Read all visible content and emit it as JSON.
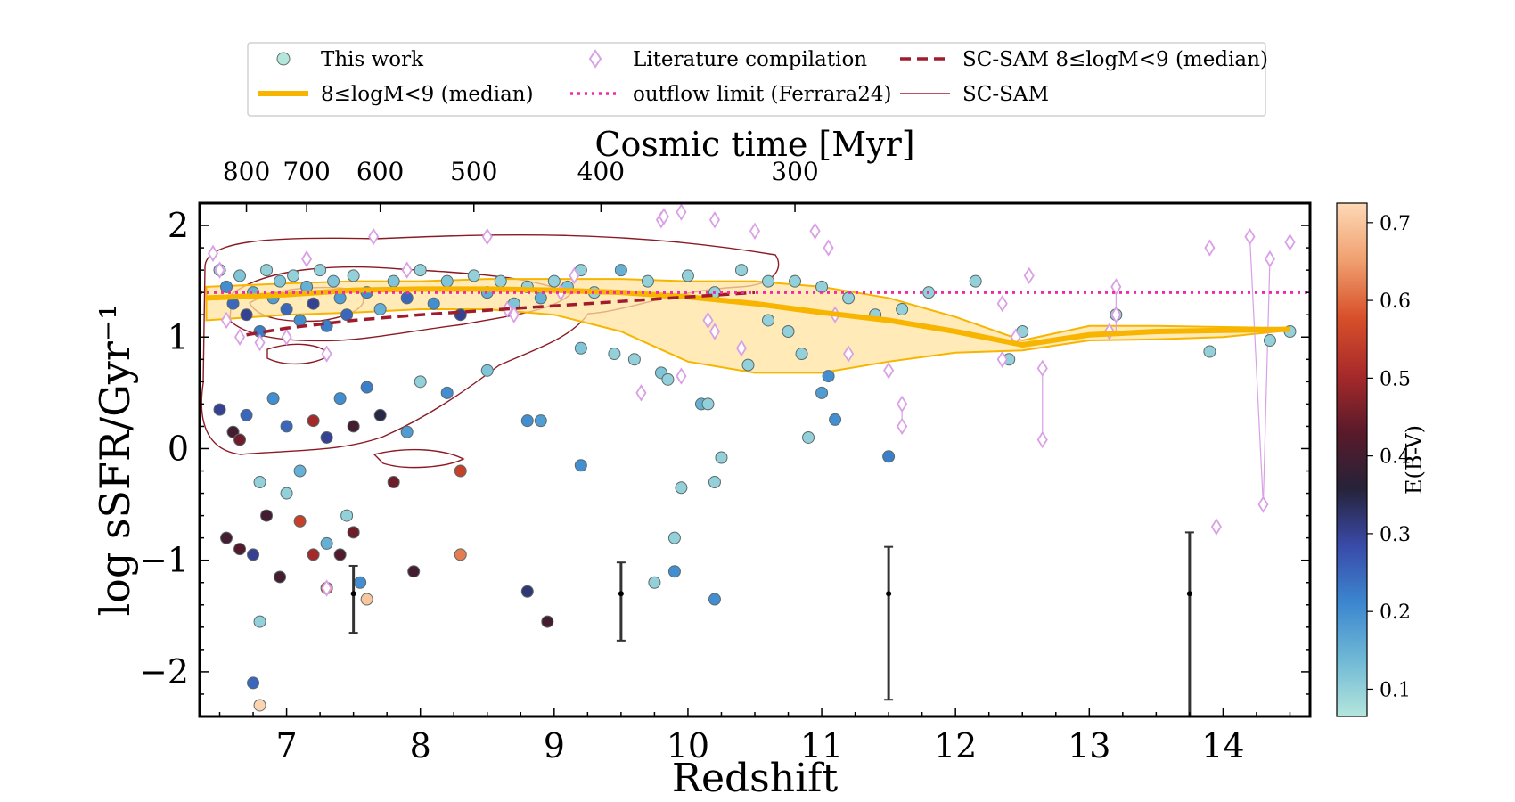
{
  "chart_data": {
    "type": "scatter",
    "xlabel": "Redshift",
    "ylabel": "log sSFR/Gyr⁻¹",
    "top_xlabel": "Cosmic time [Myr]",
    "xlim": [
      6.35,
      14.65
    ],
    "ylim": [
      -2.4,
      2.2
    ],
    "x_ticks": [
      "7",
      "8",
      "9",
      "10",
      "11",
      "12",
      "13",
      "14"
    ],
    "y_ticks": [
      "−2",
      "−1",
      "0",
      "1",
      "2"
    ],
    "top_ticks": [
      {
        "label": "800",
        "z": 6.7
      },
      {
        "label": "700",
        "z": 7.15
      },
      {
        "label": "600",
        "z": 7.7
      },
      {
        "label": "500",
        "z": 8.4
      },
      {
        "label": "400",
        "z": 9.35
      },
      {
        "label": "300",
        "z": 10.8
      }
    ],
    "colorbar": {
      "label": "E(B-V)",
      "range": [
        0.065,
        0.725
      ],
      "ticks": [
        "0.1",
        "0.2",
        "0.3",
        "0.4",
        "0.5",
        "0.6",
        "0.7"
      ],
      "tick_values": [
        0.1,
        0.2,
        0.3,
        0.4,
        0.5,
        0.6,
        0.7
      ],
      "colors": [
        "#b4e6dc",
        "#6fb8d6",
        "#3b86cf",
        "#3a4aa8",
        "#262238",
        "#5a1a2a",
        "#a82a2a",
        "#d8502a",
        "#f0a070",
        "#fdd9b5"
      ]
    },
    "legend": {
      "placement": "top",
      "entries": [
        {
          "label": "This work",
          "symbol": "circle",
          "color": "#b4e6dc"
        },
        {
          "label": "Literature compilation",
          "symbol": "diamond",
          "color": "#d9a0e6"
        },
        {
          "label": "SC-SAM 8≤logM<9 (median)",
          "symbol": "dashed",
          "color": "#a01c2c"
        },
        {
          "label": "8≤logM<9 (median)",
          "symbol": "thick",
          "color": "#f7b500"
        },
        {
          "label": "outflow limit (Ferrara24)",
          "symbol": "dotted",
          "color": "#f22aa7"
        },
        {
          "label": "SC-SAM",
          "symbol": "thin",
          "color": "#a01c2c"
        }
      ]
    },
    "series": [
      {
        "name": "This work",
        "points": [
          [
            6.5,
            1.6,
            0.1
          ],
          [
            6.55,
            1.45,
            0.2
          ],
          [
            6.6,
            1.3,
            0.25
          ],
          [
            6.65,
            1.55,
            0.12
          ],
          [
            6.7,
            1.2,
            0.3
          ],
          [
            6.75,
            1.4,
            0.15
          ],
          [
            6.8,
            1.05,
            0.22
          ],
          [
            6.85,
            1.6,
            0.1
          ],
          [
            6.9,
            1.35,
            0.18
          ],
          [
            6.95,
            1.5,
            0.12
          ],
          [
            7.0,
            1.25,
            0.25
          ],
          [
            7.05,
            1.55,
            0.1
          ],
          [
            7.1,
            1.15,
            0.2
          ],
          [
            7.15,
            1.45,
            0.15
          ],
          [
            7.2,
            1.3,
            0.3
          ],
          [
            7.25,
            1.6,
            0.1
          ],
          [
            7.3,
            1.1,
            0.22
          ],
          [
            7.35,
            1.5,
            0.12
          ],
          [
            7.4,
            1.35,
            0.18
          ],
          [
            7.45,
            1.2,
            0.25
          ],
          [
            7.5,
            1.55,
            0.1
          ],
          [
            7.6,
            1.4,
            0.2
          ],
          [
            7.7,
            1.25,
            0.15
          ],
          [
            7.8,
            1.5,
            0.12
          ],
          [
            7.9,
            1.35,
            0.25
          ],
          [
            8.0,
            1.6,
            0.1
          ],
          [
            8.1,
            1.3,
            0.2
          ],
          [
            8.2,
            1.5,
            0.12
          ],
          [
            8.3,
            1.2,
            0.3
          ],
          [
            8.4,
            1.55,
            0.1
          ],
          [
            8.5,
            1.4,
            0.15
          ],
          [
            8.6,
            1.5,
            0.1
          ],
          [
            8.7,
            1.3,
            0.12
          ],
          [
            8.8,
            1.45,
            0.1
          ],
          [
            8.9,
            1.35,
            0.15
          ],
          [
            9.0,
            1.5,
            0.1
          ],
          [
            9.1,
            1.45,
            0.12
          ],
          [
            9.2,
            1.6,
            0.1
          ],
          [
            9.3,
            1.4,
            0.1
          ],
          [
            9.5,
            1.6,
            0.15
          ],
          [
            9.7,
            1.5,
            0.1
          ],
          [
            10.0,
            1.55,
            0.1
          ],
          [
            10.2,
            1.4,
            0.1
          ],
          [
            10.4,
            1.6,
            0.1
          ],
          [
            10.6,
            1.5,
            0.1
          ],
          [
            10.8,
            1.5,
            0.1
          ],
          [
            11.0,
            1.45,
            0.1
          ],
          [
            11.2,
            1.35,
            0.1
          ],
          [
            11.4,
            1.2,
            0.1
          ],
          [
            11.6,
            1.25,
            0.1
          ],
          [
            11.8,
            1.4,
            0.1
          ],
          [
            12.15,
            1.5,
            0.1
          ],
          [
            12.5,
            1.05,
            0.1
          ],
          [
            12.4,
            0.8,
            0.1
          ],
          [
            13.2,
            1.2,
            0.1
          ],
          [
            13.9,
            0.87,
            0.1
          ],
          [
            14.35,
            0.97,
            0.1
          ],
          [
            14.5,
            1.05,
            0.1
          ],
          [
            6.5,
            0.35,
            0.3
          ],
          [
            6.6,
            0.15,
            0.4
          ],
          [
            6.65,
            0.08,
            0.45
          ],
          [
            6.7,
            0.3,
            0.25
          ],
          [
            6.8,
            -0.3,
            0.1
          ],
          [
            6.9,
            0.45,
            0.2
          ],
          [
            7.0,
            0.2,
            0.25
          ],
          [
            7.1,
            -0.2,
            0.15
          ],
          [
            7.2,
            0.25,
            0.5
          ],
          [
            7.3,
            0.1,
            0.3
          ],
          [
            7.4,
            0.45,
            0.2
          ],
          [
            7.5,
            0.2,
            0.4
          ],
          [
            7.6,
            0.55,
            0.22
          ],
          [
            7.7,
            0.3,
            0.35
          ],
          [
            7.8,
            -0.3,
            0.45
          ],
          [
            7.9,
            0.15,
            0.18
          ],
          [
            8.0,
            0.6,
            0.1
          ],
          [
            8.2,
            0.5,
            0.2
          ],
          [
            8.3,
            -0.2,
            0.55
          ],
          [
            8.5,
            0.7,
            0.12
          ],
          [
            6.55,
            -0.8,
            0.4
          ],
          [
            6.65,
            -0.9,
            0.42
          ],
          [
            6.75,
            -0.95,
            0.3
          ],
          [
            6.85,
            -0.6,
            0.4
          ],
          [
            6.95,
            -1.15,
            0.4
          ],
          [
            7.1,
            -0.65,
            0.55
          ],
          [
            7.2,
            -0.95,
            0.5
          ],
          [
            7.3,
            -0.85,
            0.15
          ],
          [
            7.4,
            -0.95,
            0.42
          ],
          [
            7.5,
            -0.75,
            0.45
          ],
          [
            7.55,
            -1.2,
            0.2
          ],
          [
            7.6,
            -1.35,
            0.7
          ],
          [
            7.3,
            -1.25,
            0.6
          ],
          [
            7.95,
            -1.1,
            0.4
          ],
          [
            8.3,
            -0.95,
            0.62
          ],
          [
            6.8,
            -1.55,
            0.1
          ],
          [
            6.75,
            -2.1,
            0.25
          ],
          [
            6.8,
            -2.3,
            0.72
          ],
          [
            7.0,
            -0.4,
            0.1
          ],
          [
            7.45,
            -0.6,
            0.1
          ],
          [
            8.8,
            -1.28,
            0.32
          ],
          [
            8.95,
            -1.55,
            0.4
          ],
          [
            9.2,
            -0.15,
            0.2
          ],
          [
            8.8,
            0.25,
            0.2
          ],
          [
            8.9,
            0.25,
            0.18
          ],
          [
            9.75,
            -1.2,
            0.1
          ],
          [
            9.9,
            -1.1,
            0.2
          ],
          [
            9.9,
            -0.8,
            0.1
          ],
          [
            9.95,
            -0.35,
            0.1
          ],
          [
            10.2,
            -1.35,
            0.2
          ],
          [
            10.2,
            -0.3,
            0.1
          ],
          [
            10.25,
            -0.08,
            0.1
          ],
          [
            10.1,
            0.4,
            0.15
          ],
          [
            10.15,
            0.4,
            0.1
          ],
          [
            10.45,
            0.75,
            0.1
          ],
          [
            10.9,
            0.1,
            0.1
          ],
          [
            11.0,
            0.5,
            0.18
          ],
          [
            11.05,
            0.65,
            0.2
          ],
          [
            11.1,
            0.26,
            0.2
          ],
          [
            11.5,
            -0.07,
            0.22
          ],
          [
            10.85,
            0.85,
            0.1
          ],
          [
            9.45,
            0.85,
            0.1
          ],
          [
            9.6,
            0.8,
            0.1
          ],
          [
            9.8,
            0.68,
            0.12
          ],
          [
            9.85,
            0.62,
            0.1
          ],
          [
            9.2,
            0.9,
            0.12
          ],
          [
            10.6,
            1.15,
            0.1
          ],
          [
            10.75,
            1.05,
            0.1
          ]
        ]
      },
      {
        "name": "Literature compilation",
        "points": [
          [
            6.45,
            1.75
          ],
          [
            6.5,
            1.6
          ],
          [
            6.55,
            1.15
          ],
          [
            6.65,
            1.0
          ],
          [
            6.8,
            0.95
          ],
          [
            7.0,
            1.0
          ],
          [
            7.15,
            1.7
          ],
          [
            7.3,
            0.85
          ],
          [
            7.65,
            1.9
          ],
          [
            7.9,
            1.6
          ],
          [
            8.5,
            1.9
          ],
          [
            8.65,
            1.25
          ],
          [
            8.7,
            1.2
          ],
          [
            9.05,
            1.4
          ],
          [
            9.15,
            1.55
          ],
          [
            9.65,
            0.5
          ],
          [
            9.8,
            2.05
          ],
          [
            9.82,
            2.08
          ],
          [
            9.95,
            2.12
          ],
          [
            10.15,
            1.15
          ],
          [
            10.2,
            1.05
          ],
          [
            10.2,
            2.05
          ],
          [
            10.4,
            0.9
          ],
          [
            10.5,
            1.95
          ],
          [
            10.95,
            1.95
          ],
          [
            11.05,
            1.8
          ],
          [
            11.1,
            1.2
          ],
          [
            11.2,
            0.85
          ],
          [
            11.5,
            0.7
          ],
          [
            11.6,
            0.4
          ],
          [
            11.6,
            0.2
          ],
          [
            12.35,
            1.3
          ],
          [
            12.35,
            0.8
          ],
          [
            12.45,
            1.0
          ],
          [
            12.55,
            1.55
          ],
          [
            12.65,
            0.72
          ],
          [
            12.65,
            0.08
          ],
          [
            13.2,
            1.45
          ],
          [
            13.2,
            1.2
          ],
          [
            13.15,
            1.05
          ],
          [
            13.9,
            1.8
          ],
          [
            13.95,
            -0.7
          ],
          [
            14.2,
            1.9
          ],
          [
            14.3,
            -0.5
          ],
          [
            14.35,
            1.7
          ],
          [
            14.5,
            1.85
          ],
          [
            7.3,
            -1.25
          ],
          [
            9.95,
            0.65
          ]
        ]
      },
      {
        "name": "8≤logM<9 (median)",
        "x": [
          6.4,
          7.0,
          7.5,
          8.0,
          8.5,
          9.0,
          9.5,
          10.0,
          10.5,
          11.0,
          11.5,
          12.0,
          12.5,
          13.0,
          13.5,
          14.0,
          14.5
        ],
        "y": [
          1.35,
          1.38,
          1.42,
          1.43,
          1.43,
          1.42,
          1.4,
          1.36,
          1.3,
          1.22,
          1.15,
          1.05,
          0.93,
          1.02,
          1.05,
          1.06,
          1.07
        ],
        "lower": [
          1.15,
          1.2,
          1.22,
          1.25,
          1.25,
          1.2,
          1.05,
          0.78,
          0.68,
          0.68,
          0.78,
          0.86,
          0.88,
          0.97,
          0.98,
          1.0,
          1.06
        ],
        "upper": [
          1.45,
          1.48,
          1.5,
          1.5,
          1.52,
          1.52,
          1.52,
          1.5,
          1.5,
          1.45,
          1.35,
          1.18,
          0.97,
          1.1,
          1.1,
          1.09,
          1.08
        ]
      },
      {
        "name": "SC-SAM 8≤logM<9 (median)",
        "x": [
          6.7,
          7.0,
          7.5,
          8.0,
          8.5,
          9.0,
          9.5,
          10.0,
          10.5
        ],
        "y": [
          1.02,
          1.08,
          1.15,
          1.2,
          1.24,
          1.28,
          1.32,
          1.36,
          1.4
        ]
      },
      {
        "name": "outflow limit (Ferrara24)",
        "x": [
          6.35,
          14.65
        ],
        "y": [
          1.4,
          1.4
        ]
      }
    ],
    "error_bars": [
      {
        "x": 7.5,
        "y": -1.3,
        "lo": -1.65,
        "hi": -1.05
      },
      {
        "x": 9.5,
        "y": -1.3,
        "lo": -1.72,
        "hi": -1.02
      },
      {
        "x": 11.5,
        "y": -1.3,
        "lo": -2.25,
        "hi": -0.88
      },
      {
        "x": 13.75,
        "y": -1.3,
        "lo": -2.4,
        "hi": -0.75
      }
    ]
  }
}
